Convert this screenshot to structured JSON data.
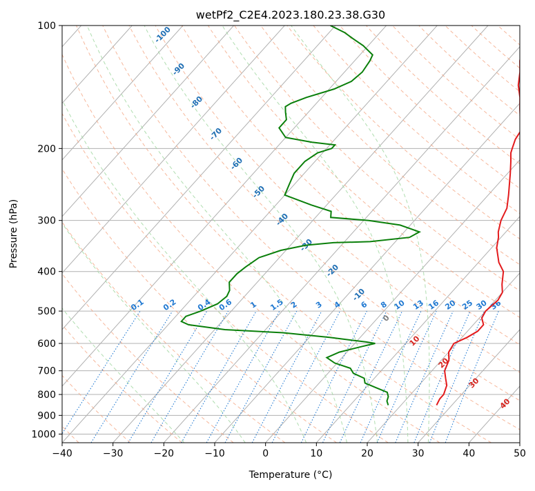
{
  "chart_data": {
    "type": "line",
    "subtype": "skew-t log-p diagram",
    "title": "wetPf2_C2E4.2023.180.23.38.G30",
    "xlabel": "Temperature (°C)",
    "ylabel": "Pressure (hPa)",
    "xlim": [
      -40,
      50
    ],
    "ylim": [
      1050,
      100
    ],
    "y_scale": "log",
    "x_ticks": [
      -40,
      -30,
      -20,
      -10,
      0,
      10,
      20,
      30,
      40,
      50
    ],
    "x_tick_labels": [
      "−40",
      "−30",
      "−20",
      "−10",
      "0",
      "10",
      "20",
      "30",
      "40",
      "50"
    ],
    "y_ticks": [
      1000,
      900,
      800,
      700,
      600,
      500,
      400,
      300,
      200,
      100
    ],
    "grid": true,
    "skew_isotherms_step": 10,
    "series": [
      {
        "key": "temperature",
        "color": "#e31a1c",
        "points": [
          [
            850,
            27.0
          ],
          [
            820,
            26.5
          ],
          [
            800,
            26.5
          ],
          [
            760,
            25.5
          ],
          [
            730,
            24.0
          ],
          [
            700,
            22.5
          ],
          [
            660,
            21.5
          ],
          [
            630,
            20.0
          ],
          [
            600,
            19.5
          ],
          [
            580,
            21.0
          ],
          [
            560,
            22.0
          ],
          [
            540,
            22.0
          ],
          [
            520,
            20.5
          ],
          [
            500,
            20.0
          ],
          [
            470,
            20.5
          ],
          [
            450,
            20.0
          ],
          [
            430,
            18.5
          ],
          [
            400,
            16.5
          ],
          [
            380,
            14.0
          ],
          [
            350,
            11.0
          ],
          [
            330,
            9.5
          ],
          [
            320,
            8.5
          ],
          [
            300,
            7.0
          ],
          [
            280,
            6.0
          ],
          [
            260,
            4.0
          ],
          [
            230,
            0.5
          ],
          [
            215,
            -1.5
          ],
          [
            205,
            -3.0
          ],
          [
            200,
            -3.5
          ],
          [
            190,
            -4.5
          ],
          [
            180,
            -5.0
          ],
          [
            170,
            -7.0
          ],
          [
            160,
            -9.0
          ],
          [
            150,
            -11.0
          ],
          [
            140,
            -13.5
          ],
          [
            130,
            -15.5
          ],
          [
            122,
            -17.5
          ],
          [
            115,
            -19.0
          ],
          [
            110,
            -19.5
          ],
          [
            105,
            -20.5
          ],
          [
            100,
            -22.0
          ]
        ]
      },
      {
        "key": "dewpoint",
        "color": "#0a7f0a",
        "points": [
          [
            850,
            17.5
          ],
          [
            830,
            16.5
          ],
          [
            810,
            16.0
          ],
          [
            790,
            15.0
          ],
          [
            770,
            12.0
          ],
          [
            750,
            9.0
          ],
          [
            730,
            8.0
          ],
          [
            710,
            5.0
          ],
          [
            690,
            3.5
          ],
          [
            670,
            -0.5
          ],
          [
            650,
            -3.0
          ],
          [
            630,
            -1.5
          ],
          [
            610,
            2.0
          ],
          [
            600,
            4.0
          ],
          [
            595,
            2.0
          ],
          [
            580,
            -6.0
          ],
          [
            565,
            -16.0
          ],
          [
            555,
            -28.0
          ],
          [
            540,
            -36.0
          ],
          [
            530,
            -38.0
          ],
          [
            515,
            -38.0
          ],
          [
            500,
            -36.0
          ],
          [
            480,
            -34.0
          ],
          [
            460,
            -33.5
          ],
          [
            445,
            -34.0
          ],
          [
            425,
            -35.5
          ],
          [
            405,
            -35.5
          ],
          [
            390,
            -35.0
          ],
          [
            370,
            -34.0
          ],
          [
            355,
            -31.0
          ],
          [
            345,
            -27.0
          ],
          [
            340,
            -22.0
          ],
          [
            338,
            -15.0
          ],
          [
            330,
            -8.0
          ],
          [
            320,
            -7.0
          ],
          [
            308,
            -12.0
          ],
          [
            300,
            -19.0
          ],
          [
            295,
            -27.0
          ],
          [
            285,
            -28.0
          ],
          [
            275,
            -33.0
          ],
          [
            260,
            -40.0
          ],
          [
            245,
            -41.0
          ],
          [
            230,
            -42.0
          ],
          [
            215,
            -42.0
          ],
          [
            205,
            -41.0
          ],
          [
            200,
            -39.0
          ],
          [
            196,
            -39.0
          ],
          [
            193,
            -44.0
          ],
          [
            188,
            -50.0
          ],
          [
            178,
            -53.0
          ],
          [
            170,
            -53.0
          ],
          [
            163,
            -54.5
          ],
          [
            158,
            -55.5
          ],
          [
            155,
            -55.0
          ],
          [
            150,
            -53.0
          ],
          [
            143,
            -49.0
          ],
          [
            137,
            -47.0
          ],
          [
            130,
            -46.5
          ],
          [
            122,
            -47.0
          ],
          [
            118,
            -47.5
          ],
          [
            112,
            -51.0
          ],
          [
            108,
            -54.0
          ],
          [
            104,
            -57.0
          ],
          [
            100,
            -61.0
          ]
        ]
      }
    ],
    "annotations": {
      "dry_adiabat_labels": [
        "-100",
        "-90",
        "-80",
        "-70",
        "-60",
        "-50",
        "-40",
        "-30",
        "-20",
        "-10",
        "0",
        "10",
        "20",
        "30",
        "40"
      ],
      "mixing_ratio_labels": [
        "0.1",
        "0.2",
        "0.4",
        "0.6",
        "1",
        "1.5",
        "2",
        "3",
        "4",
        "6",
        "8",
        "10",
        "13",
        "16",
        "20",
        "25",
        "30",
        "36"
      ]
    },
    "colors": {
      "isotherm": "#b0b0b0",
      "isobar": "#b0b0b0",
      "dry_adiabat": "#f4a582",
      "moist_adiabat": "#a6d9a6",
      "mixing_ratio": "#1f78d1",
      "label_blue": "#1f6fb4",
      "label_red": "#d6251f",
      "label_gray": "#7f7f7f",
      "axis": "#000000"
    }
  }
}
